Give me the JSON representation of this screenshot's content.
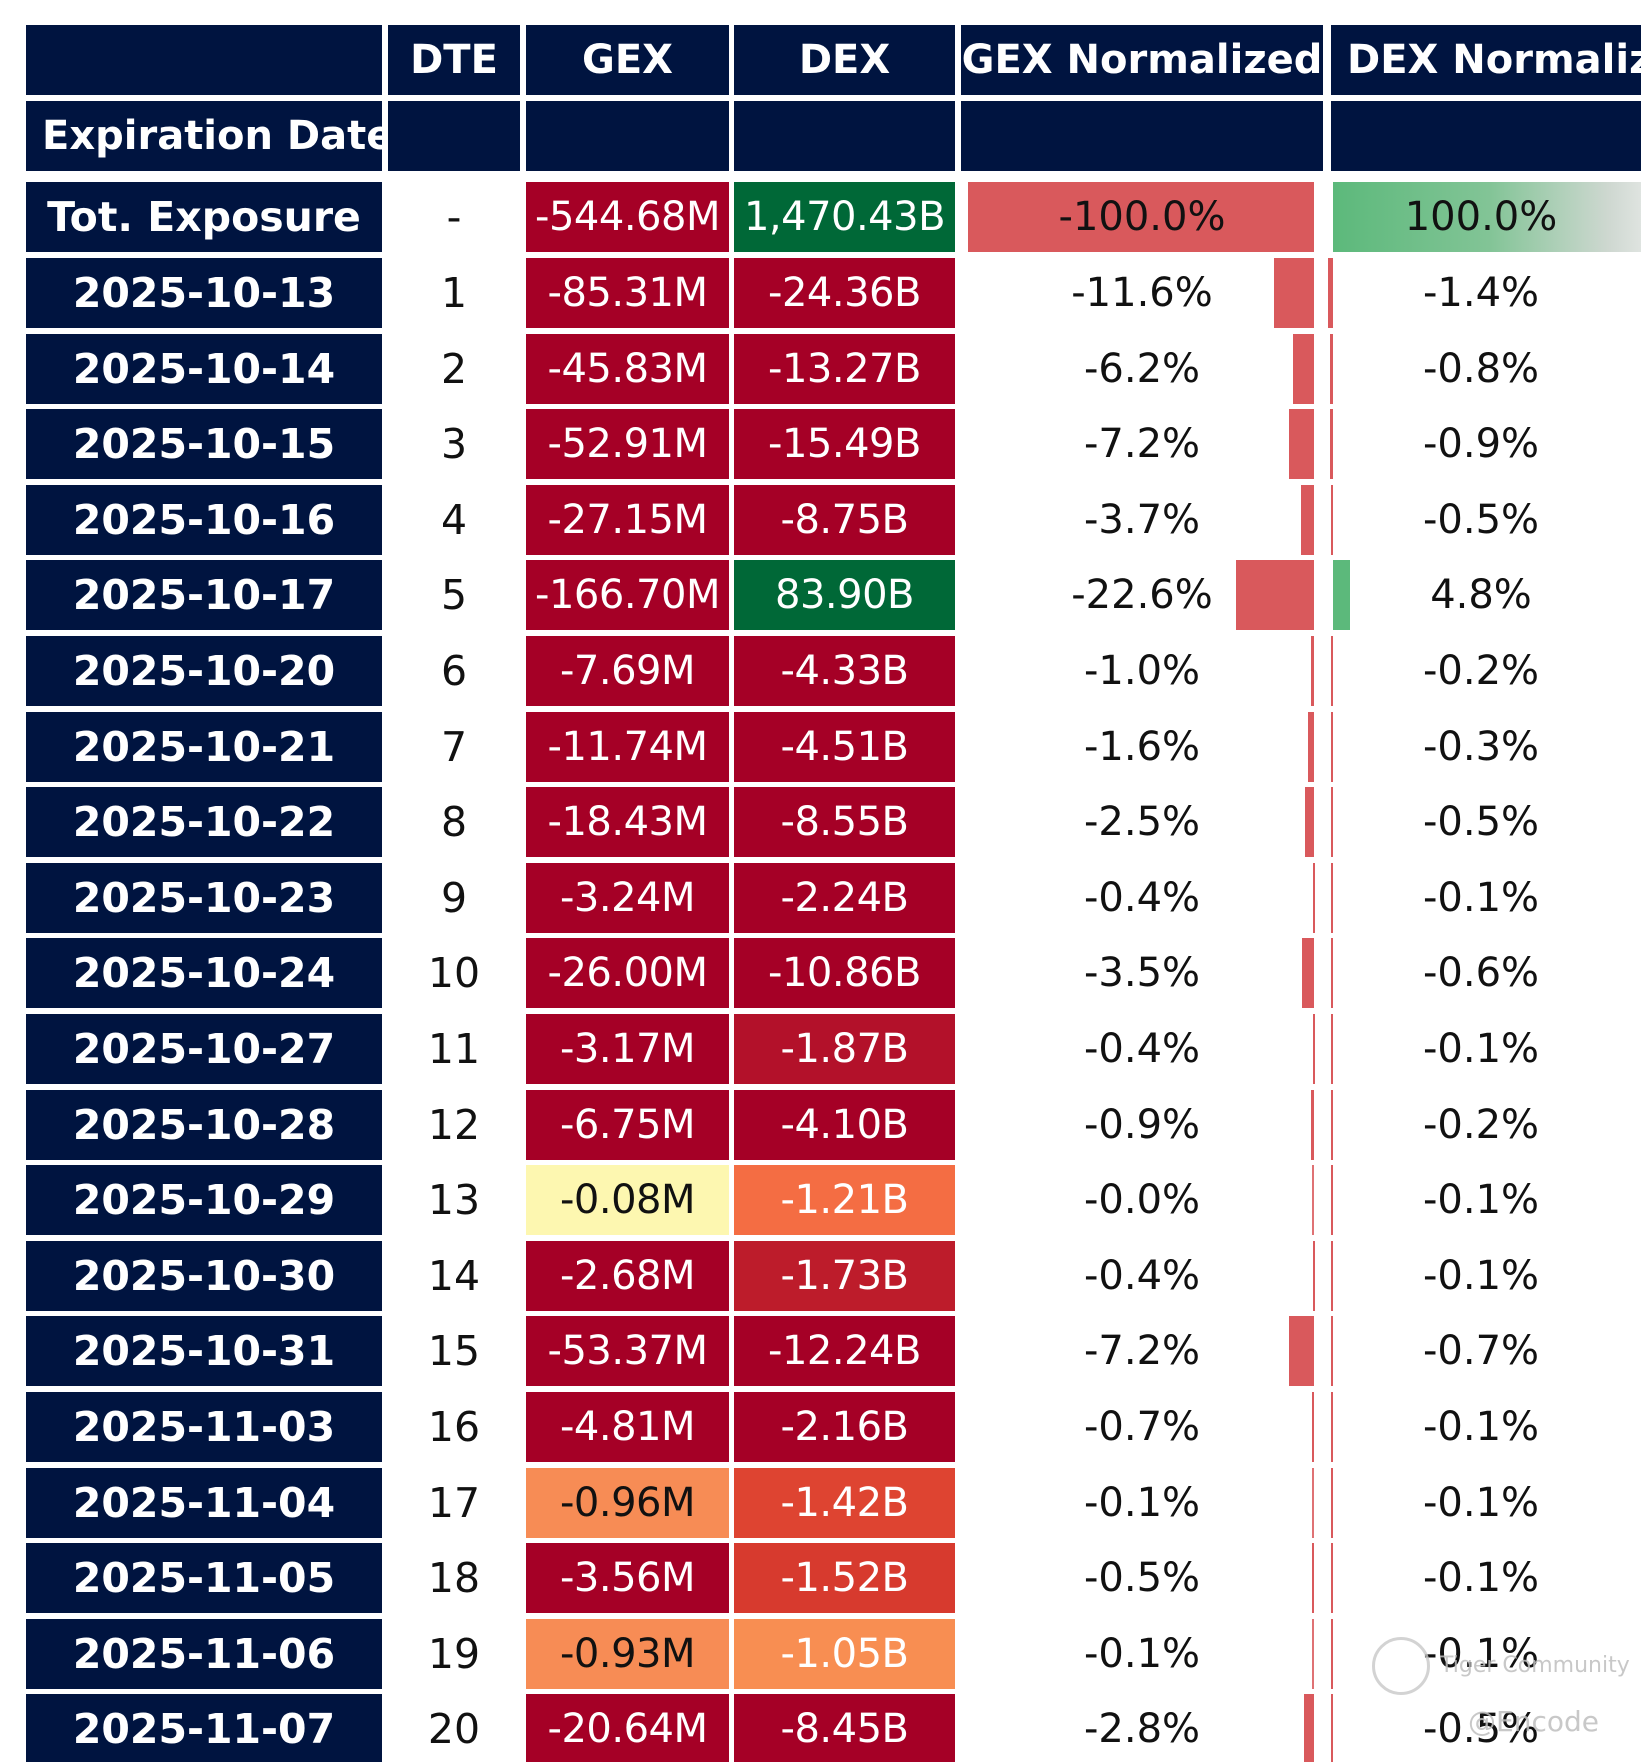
{
  "chart_data": {
    "type": "table",
    "header": {
      "row1": [
        "",
        "DTE",
        "GEX",
        "DEX",
        "GEX Normalized",
        "DEX Normaliz"
      ],
      "row2": [
        "Expiration Date",
        "",
        "",
        "",
        "",
        ""
      ]
    },
    "total": {
      "label": "Tot. Exposure",
      "dte": "-",
      "gex": "-544.68M",
      "dex": "1,470.43B",
      "gex_norm": "-100.0%",
      "dex_norm": "100.0%",
      "gex_norm_value": -100.0,
      "dex_norm_value": 100.0,
      "gex_color": "#a50026",
      "dex_color": "#006837"
    },
    "rows": [
      {
        "date": "2025-10-13",
        "dte": "1",
        "gex": "-85.31M",
        "dex": "-24.36B",
        "gex_norm": "-11.6%",
        "dex_norm": "-1.4%",
        "gex_val": -11.6,
        "dex_val": -1.4,
        "gex_color": "#a50026",
        "dex_color": "#a50026",
        "gex_text": "#ffffff",
        "dex_text": "#ffffff"
      },
      {
        "date": "2025-10-14",
        "dte": "2",
        "gex": "-45.83M",
        "dex": "-13.27B",
        "gex_norm": "-6.2%",
        "dex_norm": "-0.8%",
        "gex_val": -6.2,
        "dex_val": -0.8,
        "gex_color": "#a50026",
        "dex_color": "#a50026",
        "gex_text": "#ffffff",
        "dex_text": "#ffffff"
      },
      {
        "date": "2025-10-15",
        "dte": "3",
        "gex": "-52.91M",
        "dex": "-15.49B",
        "gex_norm": "-7.2%",
        "dex_norm": "-0.9%",
        "gex_val": -7.2,
        "dex_val": -0.9,
        "gex_color": "#a50026",
        "dex_color": "#a50026",
        "gex_text": "#ffffff",
        "dex_text": "#ffffff"
      },
      {
        "date": "2025-10-16",
        "dte": "4",
        "gex": "-27.15M",
        "dex": "-8.75B",
        "gex_norm": "-3.7%",
        "dex_norm": "-0.5%",
        "gex_val": -3.7,
        "dex_val": -0.5,
        "gex_color": "#a50026",
        "dex_color": "#a50026",
        "gex_text": "#ffffff",
        "dex_text": "#ffffff"
      },
      {
        "date": "2025-10-17",
        "dte": "5",
        "gex": "-166.70M",
        "dex": "83.90B",
        "gex_norm": "-22.6%",
        "dex_norm": "4.8%",
        "gex_val": -22.6,
        "dex_val": 4.8,
        "gex_color": "#a50026",
        "dex_color": "#006837",
        "gex_text": "#ffffff",
        "dex_text": "#ffffff"
      },
      {
        "date": "2025-10-20",
        "dte": "6",
        "gex": "-7.69M",
        "dex": "-4.33B",
        "gex_norm": "-1.0%",
        "dex_norm": "-0.2%",
        "gex_val": -1.0,
        "dex_val": -0.2,
        "gex_color": "#a50026",
        "dex_color": "#a50026",
        "gex_text": "#ffffff",
        "dex_text": "#ffffff"
      },
      {
        "date": "2025-10-21",
        "dte": "7",
        "gex": "-11.74M",
        "dex": "-4.51B",
        "gex_norm": "-1.6%",
        "dex_norm": "-0.3%",
        "gex_val": -1.6,
        "dex_val": -0.3,
        "gex_color": "#a50026",
        "dex_color": "#a50026",
        "gex_text": "#ffffff",
        "dex_text": "#ffffff"
      },
      {
        "date": "2025-10-22",
        "dte": "8",
        "gex": "-18.43M",
        "dex": "-8.55B",
        "gex_norm": "-2.5%",
        "dex_norm": "-0.5%",
        "gex_val": -2.5,
        "dex_val": -0.5,
        "gex_color": "#a50026",
        "dex_color": "#a50026",
        "gex_text": "#ffffff",
        "dex_text": "#ffffff"
      },
      {
        "date": "2025-10-23",
        "dte": "9",
        "gex": "-3.24M",
        "dex": "-2.24B",
        "gex_norm": "-0.4%",
        "dex_norm": "-0.1%",
        "gex_val": -0.4,
        "dex_val": -0.1,
        "gex_color": "#a50026",
        "dex_color": "#a50026",
        "gex_text": "#ffffff",
        "dex_text": "#ffffff"
      },
      {
        "date": "2025-10-24",
        "dte": "10",
        "gex": "-26.00M",
        "dex": "-10.86B",
        "gex_norm": "-3.5%",
        "dex_norm": "-0.6%",
        "gex_val": -3.5,
        "dex_val": -0.6,
        "gex_color": "#a50026",
        "dex_color": "#a50026",
        "gex_text": "#ffffff",
        "dex_text": "#ffffff"
      },
      {
        "date": "2025-10-27",
        "dte": "11",
        "gex": "-3.17M",
        "dex": "-1.87B",
        "gex_norm": "-0.4%",
        "dex_norm": "-0.1%",
        "gex_val": -0.4,
        "dex_val": -0.1,
        "gex_color": "#a50026",
        "dex_color": "#b3112a",
        "gex_text": "#ffffff",
        "dex_text": "#ffffff"
      },
      {
        "date": "2025-10-28",
        "dte": "12",
        "gex": "-6.75M",
        "dex": "-4.10B",
        "gex_norm": "-0.9%",
        "dex_norm": "-0.2%",
        "gex_val": -0.9,
        "dex_val": -0.2,
        "gex_color": "#a50026",
        "dex_color": "#a50026",
        "gex_text": "#ffffff",
        "dex_text": "#ffffff"
      },
      {
        "date": "2025-10-29",
        "dte": "13",
        "gex": "-0.08M",
        "dex": "-1.21B",
        "gex_norm": "-0.0%",
        "dex_norm": "-0.1%",
        "gex_val": 0.0,
        "dex_val": -0.1,
        "gex_color": "#fdf7b0",
        "dex_color": "#f46d43",
        "gex_text": "#111111",
        "dex_text": "#ffffff"
      },
      {
        "date": "2025-10-30",
        "dte": "14",
        "gex": "-2.68M",
        "dex": "-1.73B",
        "gex_norm": "-0.4%",
        "dex_norm": "-0.1%",
        "gex_val": -0.4,
        "dex_val": -0.1,
        "gex_color": "#a50026",
        "dex_color": "#bd1c2b",
        "gex_text": "#ffffff",
        "dex_text": "#ffffff"
      },
      {
        "date": "2025-10-31",
        "dte": "15",
        "gex": "-53.37M",
        "dex": "-12.24B",
        "gex_norm": "-7.2%",
        "dex_norm": "-0.7%",
        "gex_val": -7.2,
        "dex_val": -0.7,
        "gex_color": "#a50026",
        "dex_color": "#a50026",
        "gex_text": "#ffffff",
        "dex_text": "#ffffff"
      },
      {
        "date": "2025-11-03",
        "dte": "16",
        "gex": "-4.81M",
        "dex": "-2.16B",
        "gex_norm": "-0.7%",
        "dex_norm": "-0.1%",
        "gex_val": -0.7,
        "dex_val": -0.1,
        "gex_color": "#a50026",
        "dex_color": "#a50026",
        "gex_text": "#ffffff",
        "dex_text": "#ffffff"
      },
      {
        "date": "2025-11-04",
        "dte": "17",
        "gex": "-0.96M",
        "dex": "-1.42B",
        "gex_norm": "-0.1%",
        "dex_norm": "-0.1%",
        "gex_val": -0.1,
        "dex_val": -0.1,
        "gex_color": "#f78c55",
        "dex_color": "#de4431",
        "gex_text": "#111111",
        "dex_text": "#ffffff"
      },
      {
        "date": "2025-11-05",
        "dte": "18",
        "gex": "-3.56M",
        "dex": "-1.52B",
        "gex_norm": "-0.5%",
        "dex_norm": "-0.1%",
        "gex_val": -0.5,
        "dex_val": -0.1,
        "gex_color": "#a50026",
        "dex_color": "#d73a2e",
        "gex_text": "#ffffff",
        "dex_text": "#ffffff"
      },
      {
        "date": "2025-11-06",
        "dte": "19",
        "gex": "-0.93M",
        "dex": "-1.05B",
        "gex_norm": "-0.1%",
        "dex_norm": "-0.1%",
        "gex_val": -0.1,
        "dex_val": -0.1,
        "gex_color": "#f78c55",
        "dex_color": "#f88e52",
        "gex_text": "#111111",
        "dex_text": "#ffffff"
      },
      {
        "date": "2025-11-07",
        "dte": "20",
        "gex": "-20.64M",
        "dex": "-8.45B",
        "gex_norm": "-2.8%",
        "dex_norm": "-0.5%",
        "gex_val": -2.8,
        "dex_val": -0.5,
        "gex_color": "#a50026",
        "dex_color": "#a50026",
        "gex_text": "#ffffff",
        "dex_text": "#ffffff"
      }
    ]
  },
  "watermark": {
    "line1": "Tiger Community",
    "line2": "@Encode"
  }
}
